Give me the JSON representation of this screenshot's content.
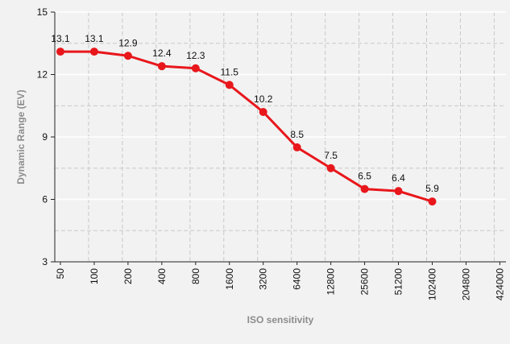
{
  "chart_data": {
    "type": "line",
    "xlabel": "ISO sensitivity",
    "ylabel": "Dynamic Range (EV)",
    "categories": [
      "50",
      "100",
      "200",
      "400",
      "800",
      "1600",
      "3200",
      "6400",
      "12800",
      "25600",
      "51200",
      "102400",
      "204800",
      "424000"
    ],
    "series": [
      {
        "values": [
          13.1,
          13.1,
          12.9,
          12.4,
          12.3,
          11.5,
          10.2,
          8.5,
          7.5,
          6.5,
          6.4,
          5.9,
          null,
          null
        ]
      }
    ],
    "data_labels": [
      "13.1",
      "13.1",
      "12.9",
      "12.4",
      "12.3",
      "11.5",
      "10.2",
      "8.5",
      "7.5",
      "6.5",
      "6.4",
      "5.9"
    ],
    "ylim": [
      3,
      15
    ],
    "y_ticks": [
      3,
      6,
      9,
      12,
      15
    ],
    "y_minor_gridlines": [
      4.5,
      7.5,
      10.5,
      13.5
    ],
    "grid": true,
    "legend": "none",
    "colors": {
      "series": "#e8171c",
      "background": "#f2f2f2",
      "grid_major": "#ffffff",
      "grid_minor": "#c8c8c8",
      "axis_title": "#8c8c8c"
    }
  }
}
